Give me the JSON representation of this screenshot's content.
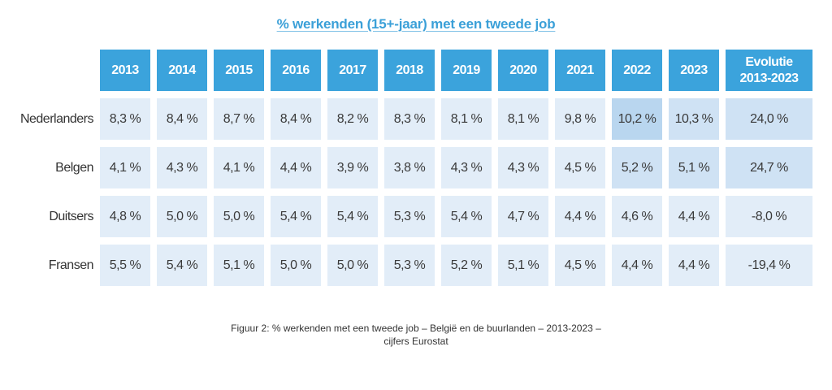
{
  "title": "% werkenden (15+-jaar) met een tweede job",
  "table": {
    "columns": [
      "2013",
      "2014",
      "2015",
      "2016",
      "2017",
      "2018",
      "2019",
      "2020",
      "2021",
      "2022",
      "2023"
    ],
    "evolution_header_line1": "Evolutie",
    "evolution_header_line2": "2013-2023",
    "rows": [
      {
        "label": "Nederlanders",
        "values": [
          "8,3 %",
          "8,4 %",
          "8,7 %",
          "8,4 %",
          "8,2 %",
          "8,3 %",
          "8,1 %",
          "8,1 %",
          "9,8 %",
          "10,2 %",
          "10,3 %"
        ],
        "evolution": "24,0 %"
      },
      {
        "label": "Belgen",
        "values": [
          "4,1 %",
          "4,3 %",
          "4,1 %",
          "4,4 %",
          "3,9 %",
          "3,8 %",
          "4,3 %",
          "4,3 %",
          "4,5 %",
          "5,2 %",
          "5,1 %"
        ],
        "evolution": "24,7 %"
      },
      {
        "label": "Duitsers",
        "values": [
          "4,8 %",
          "5,0 %",
          "5,0 %",
          "5,4 %",
          "5,4 %",
          "5,3 %",
          "5,4 %",
          "4,7 %",
          "4,4 %",
          "4,6 %",
          "4,4 %"
        ],
        "evolution": "-8,0 %"
      },
      {
        "label": "Fransen",
        "values": [
          "5,5 %",
          "5,4 %",
          "5,1 %",
          "5,0 %",
          "5,0 %",
          "5,3 %",
          "5,2 %",
          "5,1 %",
          "4,5 %",
          "4,4 %",
          "4,4 %"
        ],
        "evolution": "-19,4 %"
      }
    ],
    "highlights": {
      "Nederlanders": {
        "2022": "strong",
        "2023": "mid",
        "evolution": "mid"
      },
      "Belgen": {
        "2022": "mid",
        "2023": "mid",
        "evolution": "mid"
      }
    }
  },
  "caption": {
    "line1": "Figuur 2: % werkenden met een tweede job – België en de buurlanden – 2013-2023 –",
    "line2": "cijfers Eurostat"
  },
  "colors": {
    "header_bg": "#3ba3dc",
    "title": "#3ba0d8",
    "cell_bg": "#e2edf8",
    "cell_mid": "#cfe2f4",
    "cell_strong": "#b9d6ef"
  }
}
